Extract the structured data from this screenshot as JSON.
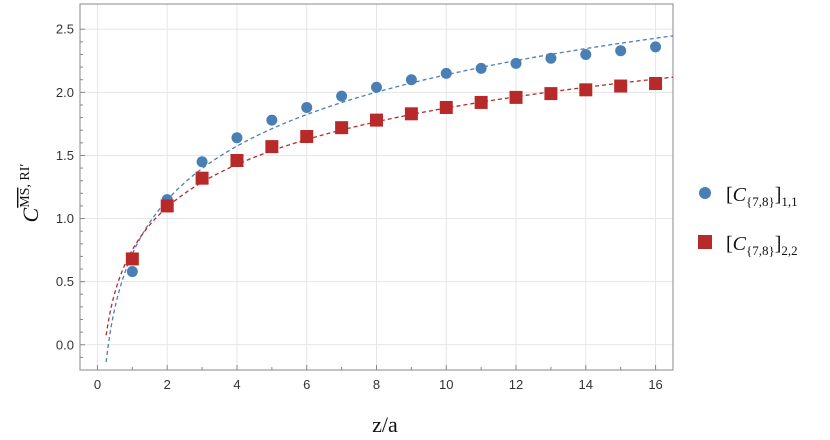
{
  "chart_data": {
    "type": "scatter",
    "xlabel": "z/a",
    "ylabel": {
      "main": "C",
      "sup_overlined": "MS",
      "sup_rest": ", RI′"
    },
    "xlim": [
      -0.5,
      16.5
    ],
    "ylim": [
      -0.2,
      2.7
    ],
    "xticks": [
      0,
      2,
      4,
      6,
      8,
      10,
      12,
      14,
      16
    ],
    "yticks": [
      0.0,
      0.5,
      1.0,
      1.5,
      2.0,
      2.5
    ],
    "ytick_labels": [
      "0.0",
      "0.5",
      "1.0",
      "1.5",
      "2.0",
      "2.5"
    ],
    "grid": true,
    "legend_position": "right",
    "series": [
      {
        "name": "[C{7,8}]1,1",
        "label_main": "[C",
        "label_sub1": "{7,8}",
        "label_close": "]",
        "label_sub2": "1,1",
        "marker": "circle",
        "color": "#4a7fb5",
        "x": [
          1,
          2,
          3,
          4,
          5,
          6,
          7,
          8,
          9,
          10,
          11,
          12,
          13,
          14,
          15,
          16
        ],
        "y": [
          0.58,
          1.15,
          1.45,
          1.64,
          1.78,
          1.88,
          1.97,
          2.04,
          2.1,
          2.15,
          2.19,
          2.23,
          2.27,
          2.3,
          2.33,
          2.36
        ],
        "fit_curve": "dashed"
      },
      {
        "name": "[C{7,8}]2,2",
        "label_main": "[C",
        "label_sub1": "{7,8}",
        "label_close": "]",
        "label_sub2": "2,2",
        "marker": "square",
        "color": "#b82a2a",
        "x": [
          1,
          2,
          3,
          4,
          5,
          6,
          7,
          8,
          9,
          10,
          11,
          12,
          13,
          14,
          15,
          16
        ],
        "y": [
          0.68,
          1.1,
          1.32,
          1.46,
          1.57,
          1.65,
          1.72,
          1.78,
          1.83,
          1.88,
          1.92,
          1.96,
          1.99,
          2.02,
          2.05,
          2.07
        ],
        "fit_curve": "dashed"
      }
    ]
  }
}
